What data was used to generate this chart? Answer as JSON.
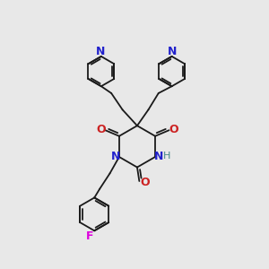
{
  "bg_color": "#e8e8e8",
  "bond_color": "#1a1a1a",
  "N_color": "#2222cc",
  "O_color": "#cc2222",
  "F_color": "#dd00dd",
  "H_color": "#448888",
  "font_size": 8,
  "line_width": 1.3,
  "figsize": [
    3.0,
    3.0
  ],
  "dpi": 100,
  "xlim": [
    0,
    10
  ],
  "ylim": [
    0,
    10
  ]
}
